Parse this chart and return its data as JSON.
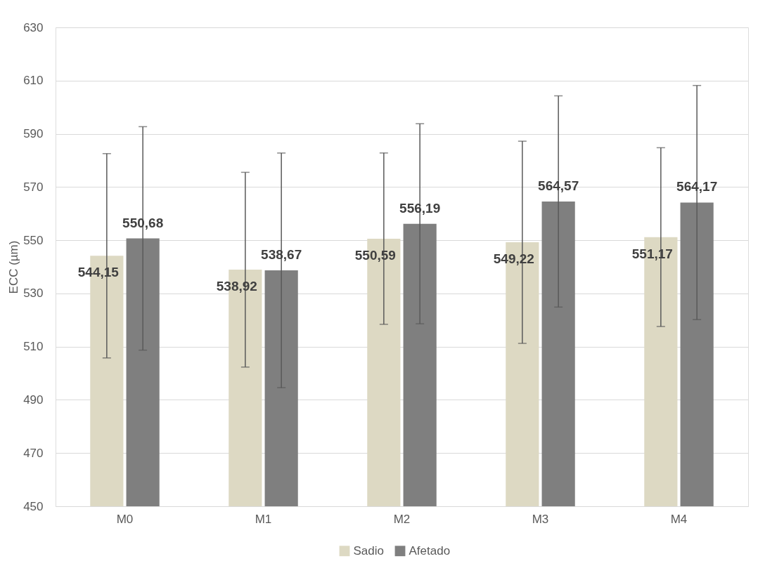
{
  "chart_data": {
    "type": "bar",
    "ylabel": "ECC (µm)",
    "categories": [
      "M0",
      "M1",
      "M2",
      "M3",
      "M4"
    ],
    "series": [
      {
        "name": "Sadio",
        "color": "#ddd9c3",
        "values": [
          544.15,
          538.92,
          550.59,
          549.22,
          551.17
        ],
        "value_labels": [
          "544,15",
          "538,92",
          "550,59",
          "549,22",
          "551,17"
        ],
        "errors": [
          38.4,
          36.6,
          32.2,
          38,
          33.6
        ]
      },
      {
        "name": "Afetado",
        "color": "#7f7f7f",
        "values": [
          550.68,
          538.67,
          556.19,
          564.57,
          564.17
        ],
        "value_labels": [
          "550,68",
          "538,67",
          "556,19",
          "564,57",
          "564,17"
        ],
        "errors": [
          42,
          44.1,
          37.6,
          39.7,
          44
        ]
      }
    ],
    "ylim": [
      450,
      630
    ],
    "yticks": [
      450,
      470,
      490,
      510,
      530,
      550,
      570,
      590,
      610,
      630
    ],
    "grid": "y",
    "legend": "bottom"
  }
}
